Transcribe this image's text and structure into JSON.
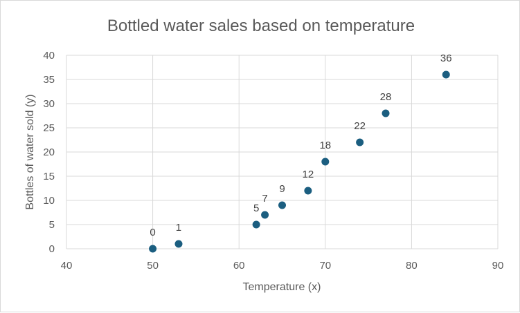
{
  "chart_data": {
    "type": "scatter",
    "title": "Bottled water sales based on temperature",
    "xlabel": "Temperature (x)",
    "ylabel": "Bottles of water sold (y)",
    "xlim": [
      40,
      90
    ],
    "ylim": [
      0,
      40
    ],
    "x_ticks": [
      40,
      50,
      60,
      70,
      80,
      90
    ],
    "y_ticks": [
      0,
      5,
      10,
      15,
      20,
      25,
      30,
      35,
      40
    ],
    "grid": true,
    "legend": "none",
    "point_color": "#1b5e80",
    "series": [
      {
        "points": [
          {
            "x": 50,
            "y": 0
          },
          {
            "x": 53,
            "y": 1
          },
          {
            "x": 62,
            "y": 5
          },
          {
            "x": 63,
            "y": 7
          },
          {
            "x": 65,
            "y": 9
          },
          {
            "x": 68,
            "y": 12
          },
          {
            "x": 70,
            "y": 18
          },
          {
            "x": 74,
            "y": 22
          },
          {
            "x": 77,
            "y": 28
          },
          {
            "x": 84,
            "y": 36
          }
        ],
        "data_labels": [
          "0",
          "1",
          "5",
          "7",
          "9",
          "12",
          "18",
          "22",
          "28",
          "36"
        ]
      }
    ]
  }
}
